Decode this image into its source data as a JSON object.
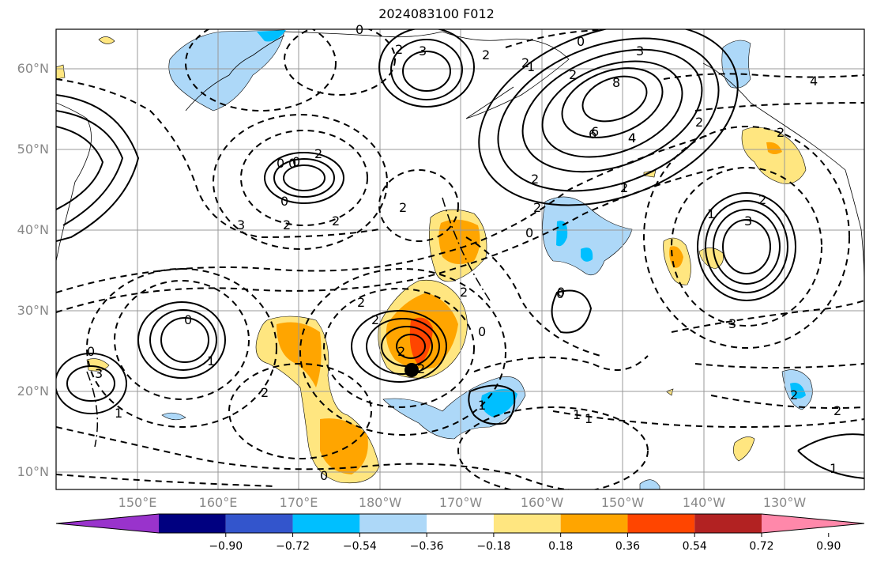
{
  "title": "2024083100 F012",
  "map": {
    "lat_labels": [
      "60°N",
      "50°N",
      "40°N",
      "30°N",
      "20°N",
      "10°N"
    ],
    "lon_labels": [
      "150°E",
      "160°E",
      "170°E",
      "180°W",
      "170°W",
      "160°W",
      "150°W",
      "140°W",
      "130°W"
    ],
    "contour_labels": [
      "3",
      "2",
      "2",
      "0",
      "2",
      "2",
      "6",
      "4",
      "3",
      "8",
      "6",
      "4",
      "2",
      "1",
      "2",
      "2",
      "0",
      "2",
      "0",
      "2",
      "2",
      "2",
      "0",
      "1",
      "3",
      "2",
      "2",
      "1",
      "3",
      "4",
      "2",
      "3",
      "0",
      "1",
      "2",
      "0",
      "1",
      "1",
      "2",
      "0",
      "2",
      "1",
      "1",
      "2",
      "2",
      "0",
      "0",
      "0",
      "2",
      "3",
      "2",
      "0",
      "0",
      "1",
      "0",
      "2"
    ],
    "marker": "storm-center"
  },
  "colorbar": {
    "colors": [
      "#9933cc",
      "#000080",
      "#3355cc",
      "#00bfff",
      "#add8f8",
      "#ffffff",
      "#ffe680",
      "#ffa500",
      "#ff4500",
      "#b22222",
      "#ff88aa"
    ],
    "tick_labels": [
      "−0.90",
      "−0.72",
      "−0.54",
      "−0.36",
      "−0.18",
      "0.18",
      "0.36",
      "0.54",
      "0.72",
      "0.90"
    ]
  }
}
